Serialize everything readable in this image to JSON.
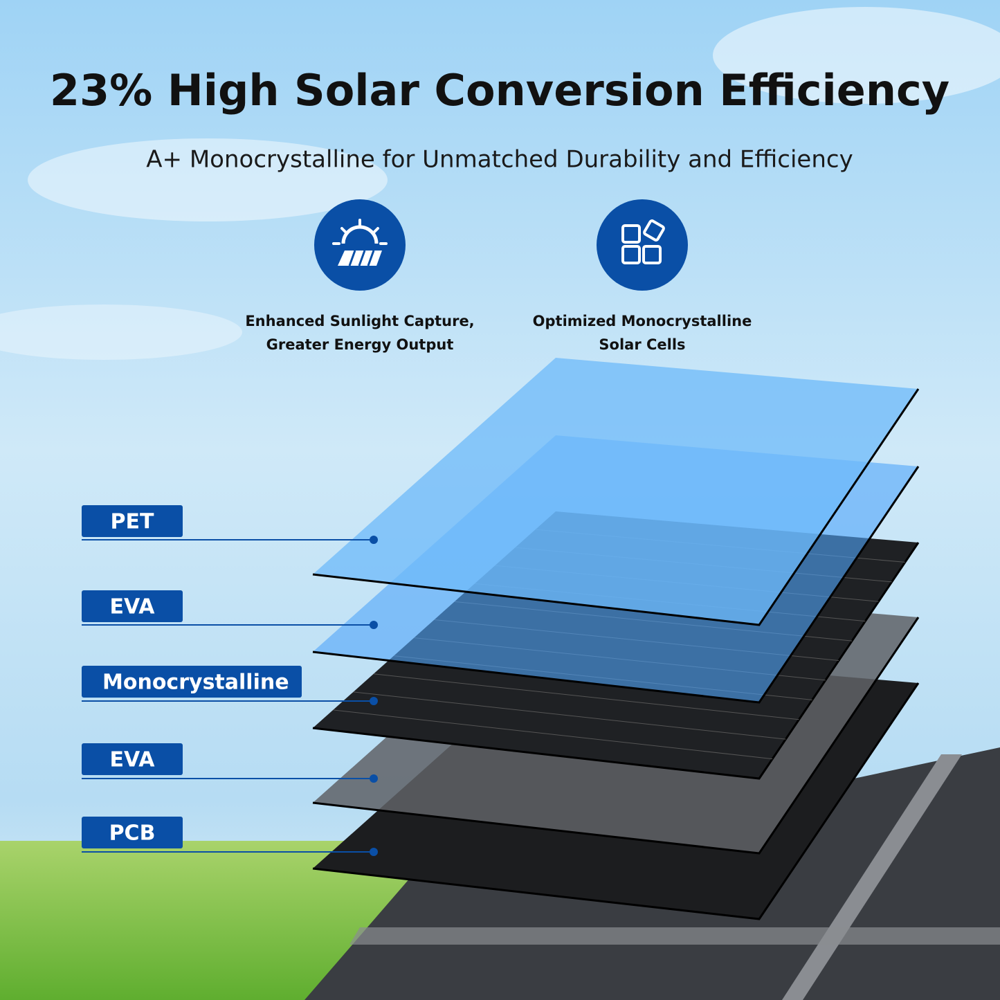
{
  "title": "23% High Solar Conversion Efficiency",
  "subtitle": "A+ Monocrystalline for Unmatched Durability and Efficiency",
  "features": [
    {
      "lines": [
        "Enhanced Sunlight Capture,",
        "Greater Energy Output"
      ]
    },
    {
      "lines": [
        "Optimized Monocrystalline",
        "Solar Cells"
      ]
    }
  ],
  "layers": [
    "PET",
    "EVA",
    "Monocrystalline",
    "EVA",
    "PCB"
  ]
}
